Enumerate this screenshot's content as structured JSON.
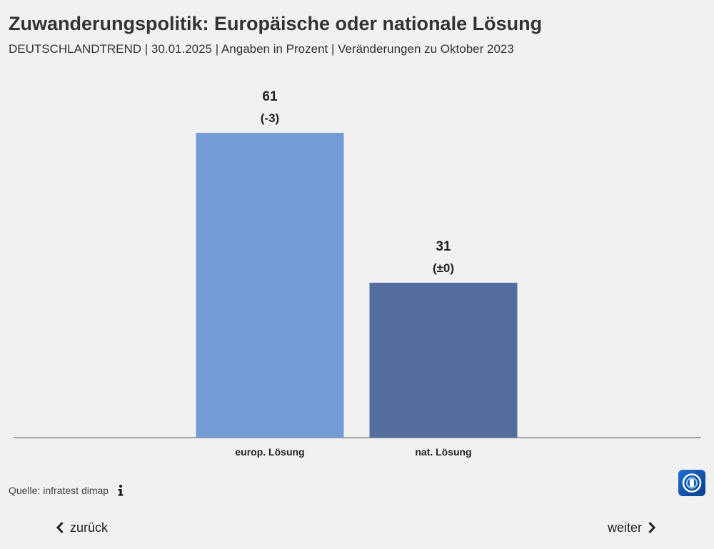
{
  "header": {
    "title": "Zuwanderungspolitik: Europäische oder nationale Lösung",
    "subtitle": "DEUTSCHLANDTREND | 30.01.2025 | Angaben in Prozent | Veränderungen zu Oktober 2023"
  },
  "chart_data": {
    "type": "bar",
    "categories": [
      "europ. Lösung",
      "nat. Lösung"
    ],
    "values": [
      61,
      31
    ],
    "changes": [
      "(-3)",
      "(±0)"
    ],
    "colors": [
      "#759dd5",
      "#546d9e"
    ],
    "ylim": [
      0,
      100
    ],
    "grid": false,
    "legend": "none"
  },
  "footer": {
    "source": "Quelle: infratest dimap",
    "info_icon": "info-icon",
    "logo": "tagesschau-logo"
  },
  "nav": {
    "back_label": "zurück",
    "next_label": "weiter"
  }
}
